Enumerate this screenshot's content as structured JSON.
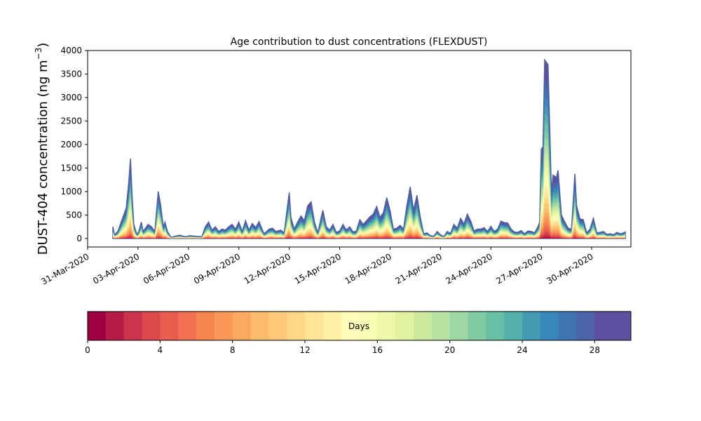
{
  "chart_data": {
    "type": "area",
    "title": "Age contribution to dust concentrations (FLEXDUST)",
    "ylabel": "DUST-404 concentration (ng m",
    "ylabel_sup": "−3",
    "ylabel_close": ")",
    "xlabel": "",
    "ylim": [
      -180,
      4000
    ],
    "yticks": [
      0,
      500,
      1000,
      1500,
      2000,
      2500,
      3000,
      3500,
      4000
    ],
    "xlim": [
      "2020-03-31T00:00",
      "2020-05-02T08:00"
    ],
    "xtick_labels": [
      "31-Mar-2020",
      "03-Apr-2020",
      "06-Apr-2020",
      "09-Apr-2020",
      "12-Apr-2020",
      "15-Apr-2020",
      "18-Apr-2020",
      "21-Apr-2020",
      "24-Apr-2020",
      "27-Apr-2020",
      "30-Apr-2020"
    ],
    "xtick_days": [
      0,
      3,
      6,
      9,
      12,
      15,
      18,
      21,
      24,
      27,
      30
    ],
    "grid": false,
    "stacked": true,
    "total_series": {
      "name": "total",
      "x_days": [
        1.5,
        1.6,
        1.8,
        2.1,
        2.3,
        2.45,
        2.55,
        2.65,
        2.75,
        2.9,
        3.0,
        3.2,
        3.3,
        3.4,
        3.6,
        3.8,
        4.0,
        4.2,
        4.35,
        4.5,
        4.6,
        4.75,
        4.9,
        5.0,
        5.2,
        5.5,
        5.8,
        6.1,
        6.4,
        6.8,
        7.0,
        7.2,
        7.4,
        7.6,
        7.8,
        8.0,
        8.2,
        8.4,
        8.6,
        8.8,
        9.0,
        9.2,
        9.4,
        9.6,
        9.8,
        10.0,
        10.2,
        10.5,
        10.8,
        11.0,
        11.2,
        11.5,
        11.7,
        11.9,
        12.0,
        12.1,
        12.3,
        12.5,
        12.7,
        12.9,
        13.1,
        13.3,
        13.5,
        13.7,
        13.9,
        14.0,
        14.2,
        14.4,
        14.6,
        14.8,
        15.0,
        15.2,
        15.4,
        15.6,
        15.8,
        16.0,
        16.2,
        16.4,
        16.6,
        16.8,
        17.0,
        17.2,
        17.4,
        17.6,
        17.8,
        18.0,
        18.2,
        18.4,
        18.6,
        18.8,
        19.0,
        19.2,
        19.4,
        19.6,
        19.8,
        20.0,
        20.2,
        20.4,
        20.6,
        20.8,
        21.0,
        21.2,
        21.4,
        21.6,
        21.8,
        22.0,
        22.2,
        22.4,
        22.6,
        22.8,
        23.0,
        23.2,
        23.4,
        23.6,
        23.8,
        24.0,
        24.2,
        24.4,
        24.6,
        24.8,
        25.0,
        25.2,
        25.4,
        25.6,
        25.8,
        26.0,
        26.2,
        26.4,
        26.6,
        26.8,
        26.9,
        27.0,
        27.1,
        27.2,
        27.4,
        27.6,
        27.7,
        27.9,
        28.0,
        28.2,
        28.4,
        28.6,
        28.8,
        29.0,
        29.1,
        29.3,
        29.5,
        29.7,
        29.9,
        30.1,
        30.3,
        30.5,
        30.7,
        30.9,
        31.1,
        31.3,
        31.5,
        31.7,
        31.9,
        32.0
      ],
      "values": [
        250,
        80,
        150,
        450,
        650,
        1200,
        1700,
        900,
        300,
        120,
        100,
        350,
        150,
        200,
        300,
        250,
        150,
        1000,
        700,
        250,
        350,
        150,
        60,
        20,
        50,
        70,
        40,
        60,
        50,
        40,
        250,
        350,
        180,
        250,
        150,
        200,
        180,
        250,
        300,
        200,
        350,
        150,
        380,
        180,
        320,
        230,
        360,
        100,
        200,
        220,
        150,
        180,
        120,
        700,
        980,
        450,
        200,
        350,
        480,
        380,
        700,
        780,
        350,
        120,
        450,
        600,
        250,
        180,
        300,
        130,
        160,
        300,
        180,
        250,
        140,
        160,
        400,
        300,
        380,
        460,
        520,
        680,
        450,
        550,
        870,
        600,
        200,
        220,
        280,
        200,
        700,
        1100,
        600,
        920,
        450,
        100,
        120,
        60,
        50,
        150,
        80,
        40,
        150,
        110,
        300,
        220,
        430,
        310,
        520,
        370,
        160,
        200,
        200,
        230,
        150,
        260,
        150,
        200,
        370,
        340,
        330,
        200,
        140,
        130,
        170,
        100,
        160,
        150,
        120,
        250,
        350,
        1900,
        1950,
        3800,
        3700,
        1000,
        1350,
        1300,
        1450,
        500,
        350,
        220,
        200,
        1380,
        700,
        420,
        400,
        120,
        200,
        430,
        120,
        130,
        150,
        90,
        100,
        80,
        130,
        100,
        120,
        140
      ]
    },
    "age_fraction_description_days": [
      0,
      30
    ],
    "colorbar": {
      "label": "Days",
      "min": 0,
      "max": 30,
      "n_bins": 30,
      "ticks": [
        0,
        4,
        8,
        12,
        16,
        20,
        24,
        28
      ],
      "colors": [
        "#9e0142",
        "#b71c48",
        "#cc334c",
        "#dc494c",
        "#e75d4f",
        "#f27153",
        "#f6844f",
        "#f89757",
        "#fba95f",
        "#fdbb6c",
        "#fdc979",
        "#fed686",
        "#fee496",
        "#fef0a5",
        "#fffbb9",
        "#f8fcb4",
        "#eef8a8",
        "#e0f29f",
        "#ccea9e",
        "#b7e2a1",
        "#9cd7a4",
        "#80cba4",
        "#68c1a4",
        "#54afab",
        "#4499b3",
        "#3787bc",
        "#3f74b2",
        "#4d63a9",
        "#5e4fa2",
        "#5e4fa2"
      ]
    }
  }
}
